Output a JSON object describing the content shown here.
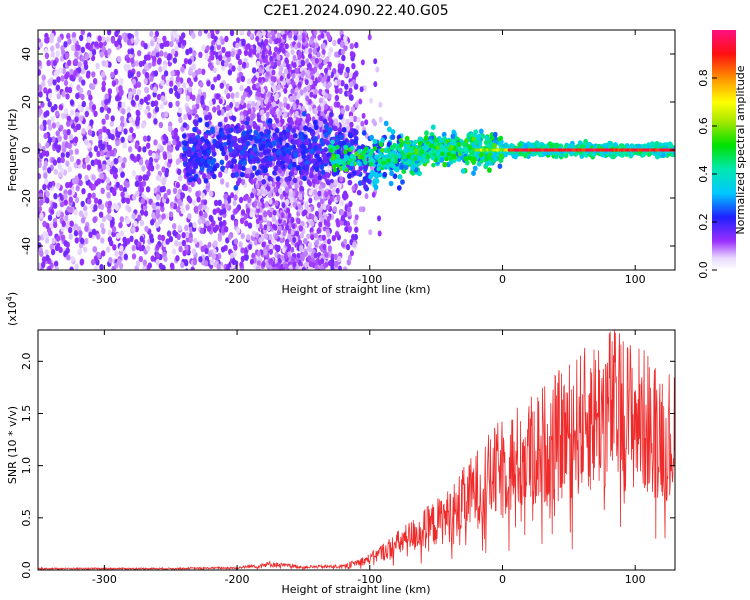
{
  "title": "C2E1.2024.090.22.40.G05",
  "chart_data": [
    {
      "type": "heatmap",
      "xlabel": "Height of straight line (km)",
      "ylabel": "Frequency (Hz)",
      "xlim": [
        -350,
        130
      ],
      "ylim": [
        -50,
        50
      ],
      "xticks": [
        -300,
        -200,
        -100,
        0,
        100
      ],
      "yticks": [
        -40,
        -20,
        0,
        20,
        40
      ],
      "colorbar": {
        "label": "Normalized spectral amplitude",
        "range": [
          0.0,
          1.0
        ],
        "ticks": [
          "0.0",
          "0.2",
          "0.4",
          "0.6",
          "0.8"
        ]
      },
      "description_of_values": [
        {
          "x_range": [
            -350,
            -240
          ],
          "amplitude": "low (0.05-0.2)",
          "freq_spread": "full band"
        },
        {
          "x_range": [
            -240,
            -75
          ],
          "amplitude": "0.1-0.4",
          "freq_spread": "concentrated near 0 Hz, +/-10"
        },
        {
          "x_range": [
            -75,
            0
          ],
          "amplitude": "0.3-0.6",
          "freq_spread": "near 0 Hz, +/-5"
        },
        {
          "x_range": [
            0,
            130
          ],
          "amplitude": "0.8-1.0",
          "freq_spread": "narrow line at 0 Hz"
        }
      ]
    },
    {
      "type": "line",
      "xlabel": "Height of straight line (km)",
      "ylabel": "SNR (10 * v/v)",
      "multiplier": "(x10",
      "multiplier_exp": "4",
      "multiplier_close": ")",
      "xlim": [
        -350,
        130
      ],
      "ylim": [
        0.0,
        2.3
      ],
      "xticks": [
        -300,
        -200,
        -100,
        0,
        100
      ],
      "yticks": [
        "0.0",
        "0.5",
        "1.0",
        "1.5",
        "2.0"
      ],
      "series": [
        {
          "color": "#ee2a2a",
          "envelope": [
            {
              "x": -350,
              "y": 0.02
            },
            {
              "x": -250,
              "y": 0.02
            },
            {
              "x": -200,
              "y": 0.03
            },
            {
              "x": -175,
              "y": 0.08
            },
            {
              "x": -150,
              "y": 0.04
            },
            {
              "x": -120,
              "y": 0.05
            },
            {
              "x": -100,
              "y": 0.15
            },
            {
              "x": -80,
              "y": 0.35
            },
            {
              "x": -60,
              "y": 0.55
            },
            {
              "x": -40,
              "y": 0.75
            },
            {
              "x": -20,
              "y": 1.1
            },
            {
              "x": 0,
              "y": 1.4
            },
            {
              "x": 20,
              "y": 1.6
            },
            {
              "x": 50,
              "y": 1.9
            },
            {
              "x": 80,
              "y": 2.25
            },
            {
              "x": 100,
              "y": 2.1
            },
            {
              "x": 130,
              "y": 1.8
            }
          ]
        }
      ]
    }
  ]
}
